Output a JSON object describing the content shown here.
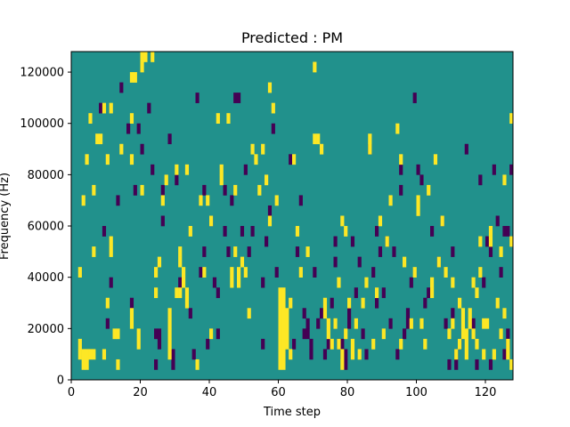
{
  "chart_data": {
    "type": "heatmap",
    "title": "Predicted : PM",
    "xlabel": "Time step",
    "ylabel": "Frequency (Hz)",
    "xlim": [
      0,
      128
    ],
    "ylim": [
      0,
      128000
    ],
    "x_ticks": [
      0,
      20,
      40,
      60,
      80,
      100,
      120
    ],
    "y_ticks": [
      0,
      20000,
      40000,
      60000,
      80000,
      100000,
      120000
    ],
    "x_tick_labels": [
      "0",
      "20",
      "40",
      "60",
      "80",
      "100",
      "120"
    ],
    "y_tick_labels": [
      "0",
      "20000",
      "40000",
      "60000",
      "80000",
      "100000",
      "120000"
    ],
    "n_rows": 32,
    "n_cols": 128,
    "background_value": 0,
    "colors": {
      "low": "#440154",
      "mid": "#21918c",
      "high": "#fde725",
      "frame": "#000000"
    },
    "high_cells": [
      [
        2,
        2
      ],
      [
        2,
        3
      ],
      [
        2,
        10
      ],
      [
        3,
        1
      ],
      [
        3,
        2
      ],
      [
        3,
        17
      ],
      [
        4,
        1
      ],
      [
        4,
        2
      ],
      [
        4,
        21
      ],
      [
        5,
        2
      ],
      [
        5,
        25
      ],
      [
        6,
        2
      ],
      [
        6,
        12
      ],
      [
        6,
        18
      ],
      [
        7,
        23
      ],
      [
        8,
        23
      ],
      [
        9,
        2
      ],
      [
        9,
        26
      ],
      [
        10,
        7
      ],
      [
        10,
        21
      ],
      [
        11,
        12
      ],
      [
        11,
        13
      ],
      [
        11,
        26
      ],
      [
        12,
        4
      ],
      [
        13,
        1
      ],
      [
        13,
        4
      ],
      [
        14,
        22
      ],
      [
        17,
        5
      ],
      [
        17,
        6
      ],
      [
        17,
        21
      ],
      [
        17,
        25
      ],
      [
        17,
        29
      ],
      [
        18,
        29
      ],
      [
        19,
        3
      ],
      [
        19,
        4
      ],
      [
        20,
        30
      ],
      [
        20,
        31
      ],
      [
        20,
        18
      ],
      [
        21,
        31
      ],
      [
        23,
        31
      ],
      [
        24,
        8
      ],
      [
        24,
        10
      ],
      [
        25,
        11
      ],
      [
        26,
        17
      ],
      [
        27,
        19
      ],
      [
        28,
        2
      ],
      [
        28,
        3
      ],
      [
        28,
        4
      ],
      [
        28,
        5
      ],
      [
        28,
        6
      ],
      [
        30,
        8
      ],
      [
        30,
        20
      ],
      [
        31,
        8
      ],
      [
        31,
        11
      ],
      [
        31,
        12
      ],
      [
        32,
        9
      ],
      [
        32,
        10
      ],
      [
        33,
        7
      ],
      [
        33,
        8
      ],
      [
        33,
        20
      ],
      [
        34,
        14
      ],
      [
        36,
        1
      ],
      [
        37,
        17
      ],
      [
        38,
        10
      ],
      [
        39,
        17
      ],
      [
        40,
        4
      ],
      [
        40,
        15
      ],
      [
        42,
        25
      ],
      [
        43,
        19
      ],
      [
        43,
        20
      ],
      [
        45,
        25
      ],
      [
        46,
        9
      ],
      [
        46,
        10
      ],
      [
        47,
        12
      ],
      [
        47,
        18
      ],
      [
        48,
        9
      ],
      [
        48,
        10
      ],
      [
        49,
        11
      ],
      [
        50,
        10
      ],
      [
        51,
        6
      ],
      [
        52,
        22
      ],
      [
        53,
        21
      ],
      [
        54,
        18
      ],
      [
        55,
        22
      ],
      [
        56,
        19
      ],
      [
        57,
        15
      ],
      [
        57,
        28
      ],
      [
        58,
        26
      ],
      [
        59,
        17
      ],
      [
        60,
        1
      ],
      [
        60,
        2
      ],
      [
        60,
        3
      ],
      [
        60,
        4
      ],
      [
        60,
        5
      ],
      [
        60,
        6
      ],
      [
        60,
        7
      ],
      [
        60,
        8
      ],
      [
        61,
        1
      ],
      [
        61,
        2
      ],
      [
        61,
        3
      ],
      [
        61,
        4
      ],
      [
        61,
        5
      ],
      [
        61,
        6
      ],
      [
        61,
        7
      ],
      [
        61,
        8
      ],
      [
        62,
        3
      ],
      [
        62,
        4
      ],
      [
        62,
        5
      ],
      [
        62,
        6
      ],
      [
        63,
        2
      ],
      [
        63,
        7
      ],
      [
        64,
        21
      ],
      [
        65,
        14
      ],
      [
        66,
        10
      ],
      [
        68,
        12
      ],
      [
        70,
        23
      ],
      [
        70,
        30
      ],
      [
        71,
        23
      ],
      [
        72,
        22
      ],
      [
        73,
        6
      ],
      [
        73,
        7
      ],
      [
        74,
        4
      ],
      [
        74,
        5
      ],
      [
        75,
        3
      ],
      [
        76,
        5
      ],
      [
        77,
        3
      ],
      [
        77,
        9
      ],
      [
        78,
        1
      ],
      [
        78,
        2
      ],
      [
        78,
        15
      ],
      [
        79,
        14
      ],
      [
        79,
        4
      ],
      [
        80,
        7
      ],
      [
        81,
        3
      ],
      [
        81,
        2
      ],
      [
        82,
        5
      ],
      [
        83,
        2
      ],
      [
        84,
        7
      ],
      [
        85,
        9
      ],
      [
        86,
        22
      ],
      [
        86,
        23
      ],
      [
        87,
        3
      ],
      [
        88,
        8
      ],
      [
        89,
        15
      ],
      [
        90,
        4
      ],
      [
        91,
        13
      ],
      [
        92,
        17
      ],
      [
        94,
        24
      ],
      [
        95,
        3
      ],
      [
        95,
        21
      ],
      [
        96,
        11
      ],
      [
        98,
        5
      ],
      [
        99,
        10
      ],
      [
        100,
        16
      ],
      [
        100,
        17
      ],
      [
        101,
        5
      ],
      [
        102,
        3
      ],
      [
        103,
        18
      ],
      [
        104,
        9
      ],
      [
        104,
        8
      ],
      [
        105,
        21
      ],
      [
        106,
        11
      ],
      [
        107,
        15
      ],
      [
        108,
        10
      ],
      [
        109,
        4
      ],
      [
        110,
        5
      ],
      [
        110,
        9
      ],
      [
        111,
        2
      ],
      [
        112,
        3
      ],
      [
        112,
        7
      ],
      [
        113,
        6
      ],
      [
        113,
        4
      ],
      [
        113,
        5
      ],
      [
        114,
        2
      ],
      [
        114,
        3
      ],
      [
        114,
        4
      ],
      [
        115,
        5
      ],
      [
        115,
        6
      ],
      [
        116,
        4
      ],
      [
        116,
        9
      ],
      [
        117,
        8
      ],
      [
        117,
        3
      ],
      [
        118,
        10
      ],
      [
        118,
        13
      ],
      [
        119,
        2
      ],
      [
        119,
        5
      ],
      [
        120,
        5
      ],
      [
        121,
        13
      ],
      [
        121,
        14
      ],
      [
        122,
        2
      ],
      [
        123,
        7
      ],
      [
        124,
        4
      ],
      [
        124,
        12
      ],
      [
        125,
        6
      ],
      [
        125,
        19
      ],
      [
        126,
        3
      ],
      [
        127,
        13
      ],
      [
        127,
        25
      ],
      [
        127,
        1
      ],
      [
        126,
        2
      ]
    ],
    "low_cells": [
      [
        8,
        26
      ],
      [
        9,
        14
      ],
      [
        10,
        5
      ],
      [
        11,
        9
      ],
      [
        13,
        17
      ],
      [
        14,
        28
      ],
      [
        16,
        24
      ],
      [
        17,
        7
      ],
      [
        18,
        18
      ],
      [
        19,
        24
      ],
      [
        20,
        22
      ],
      [
        22,
        26
      ],
      [
        23,
        20
      ],
      [
        24,
        1
      ],
      [
        24,
        4
      ],
      [
        25,
        3
      ],
      [
        25,
        4
      ],
      [
        26,
        15
      ],
      [
        26,
        18
      ],
      [
        28,
        23
      ],
      [
        29,
        1
      ],
      [
        29,
        2
      ],
      [
        30,
        19
      ],
      [
        31,
        9
      ],
      [
        34,
        6
      ],
      [
        35,
        2
      ],
      [
        36,
        27
      ],
      [
        37,
        10
      ],
      [
        38,
        12
      ],
      [
        38,
        18
      ],
      [
        39,
        3
      ],
      [
        40,
        15
      ],
      [
        41,
        9
      ],
      [
        42,
        8
      ],
      [
        42,
        4
      ],
      [
        44,
        14
      ],
      [
        44,
        18
      ],
      [
        45,
        12
      ],
      [
        46,
        17
      ],
      [
        47,
        27
      ],
      [
        48,
        27
      ],
      [
        49,
        14
      ],
      [
        50,
        20
      ],
      [
        51,
        12
      ],
      [
        52,
        14
      ],
      [
        55,
        3
      ],
      [
        55,
        9
      ],
      [
        56,
        13
      ],
      [
        57,
        16
      ],
      [
        58,
        24
      ],
      [
        59,
        10
      ],
      [
        60,
        4
      ],
      [
        63,
        21
      ],
      [
        64,
        3
      ],
      [
        65,
        12
      ],
      [
        66,
        17
      ],
      [
        67,
        4
      ],
      [
        67,
        6
      ],
      [
        68,
        4
      ],
      [
        68,
        5
      ],
      [
        69,
        2
      ],
      [
        69,
        3
      ],
      [
        70,
        10
      ],
      [
        71,
        5
      ],
      [
        72,
        6
      ],
      [
        73,
        2
      ],
      [
        74,
        3
      ],
      [
        75,
        7
      ],
      [
        76,
        11
      ],
      [
        76,
        13
      ],
      [
        77,
        3
      ],
      [
        78,
        2
      ],
      [
        78,
        3
      ],
      [
        79,
        1
      ],
      [
        79,
        2
      ],
      [
        80,
        5
      ],
      [
        80,
        6
      ],
      [
        81,
        13
      ],
      [
        82,
        8
      ],
      [
        83,
        11
      ],
      [
        84,
        4
      ],
      [
        85,
        2
      ],
      [
        86,
        22
      ],
      [
        87,
        10
      ],
      [
        88,
        7
      ],
      [
        88,
        14
      ],
      [
        89,
        12
      ],
      [
        90,
        8
      ],
      [
        91,
        13
      ],
      [
        92,
        5
      ],
      [
        93,
        12
      ],
      [
        94,
        2
      ],
      [
        95,
        18
      ],
      [
        95,
        20
      ],
      [
        96,
        4
      ],
      [
        97,
        5
      ],
      [
        97,
        6
      ],
      [
        98,
        9
      ],
      [
        99,
        27
      ],
      [
        100,
        20
      ],
      [
        101,
        19
      ],
      [
        102,
        7
      ],
      [
        103,
        8
      ],
      [
        104,
        14
      ],
      [
        106,
        11
      ],
      [
        107,
        15
      ],
      [
        108,
        5
      ],
      [
        109,
        1
      ],
      [
        110,
        6
      ],
      [
        110,
        12
      ],
      [
        111,
        1
      ],
      [
        111,
        2
      ],
      [
        112,
        3
      ],
      [
        113,
        4
      ],
      [
        114,
        22
      ],
      [
        116,
        5
      ],
      [
        117,
        1
      ],
      [
        118,
        19
      ],
      [
        119,
        9
      ],
      [
        120,
        13
      ],
      [
        121,
        1
      ],
      [
        121,
        12
      ],
      [
        122,
        20
      ],
      [
        123,
        15
      ],
      [
        124,
        10
      ],
      [
        125,
        14
      ],
      [
        125,
        2
      ],
      [
        126,
        3
      ],
      [
        126,
        4
      ],
      [
        126,
        14
      ],
      [
        127,
        13
      ],
      [
        127,
        20
      ]
    ]
  }
}
